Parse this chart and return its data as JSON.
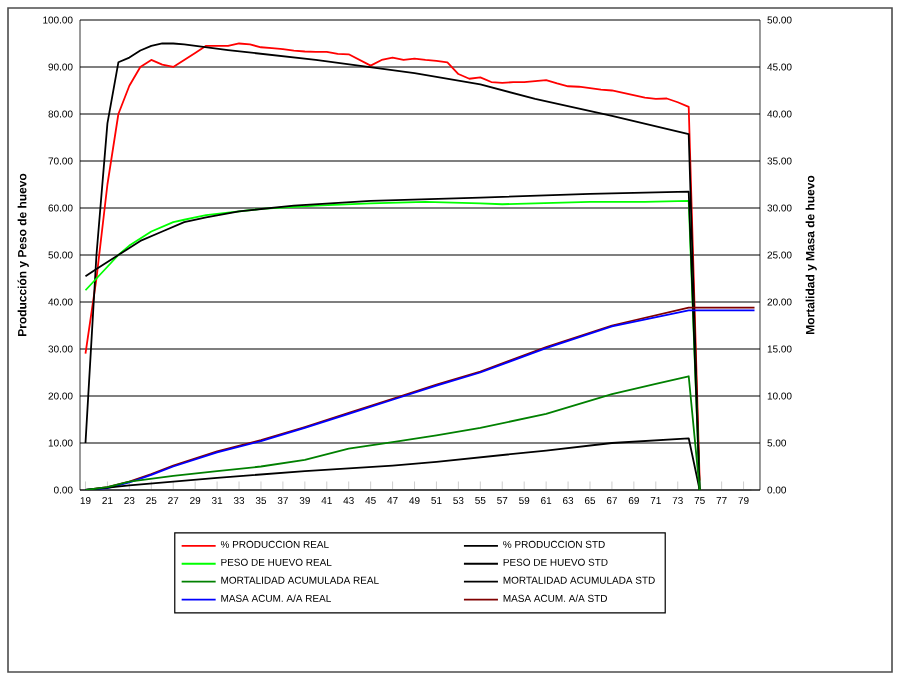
{
  "chart_data": {
    "type": "line",
    "ylabel": "Producción y Peso de huevo",
    "y2label": "Mortalidad y Masa de huevo",
    "xlim": [
      18.5,
      80.5
    ],
    "xticks": [
      19,
      21,
      23,
      25,
      27,
      29,
      31,
      33,
      35,
      37,
      39,
      41,
      43,
      45,
      47,
      49,
      51,
      53,
      55,
      57,
      59,
      61,
      63,
      65,
      67,
      69,
      71,
      73,
      75,
      77,
      79
    ],
    "ylim": [
      0,
      100
    ],
    "yticks": [
      {
        "value": 0,
        "label": "0.00"
      },
      {
        "value": 10,
        "label": "10.00"
      },
      {
        "value": 20,
        "label": "20.00"
      },
      {
        "value": 30,
        "label": "30.00"
      },
      {
        "value": 40,
        "label": "40.00"
      },
      {
        "value": 50,
        "label": "50.00"
      },
      {
        "value": 60,
        "label": "60.00"
      },
      {
        "value": 70,
        "label": "70.00"
      },
      {
        "value": 80,
        "label": "80.00"
      },
      {
        "value": 90,
        "label": "90.00"
      },
      {
        "value": 100,
        "label": "100.00"
      }
    ],
    "y2lim": [
      0,
      50
    ],
    "y2ticks": [
      {
        "value": 0,
        "label": "0.00"
      },
      {
        "value": 5,
        "label": "5.00"
      },
      {
        "value": 10,
        "label": "10.00"
      },
      {
        "value": 15,
        "label": "15.00"
      },
      {
        "value": 20,
        "label": "20.00"
      },
      {
        "value": 25,
        "label": "25.00"
      },
      {
        "value": 30,
        "label": "30.00"
      },
      {
        "value": 35,
        "label": "35.00"
      },
      {
        "value": 40,
        "label": "40.00"
      },
      {
        "value": 45,
        "label": "45.00"
      },
      {
        "value": 50,
        "label": "50.00"
      }
    ],
    "grid": "y",
    "legend": "bottom",
    "marker": "none",
    "line_style": "solid",
    "series": [
      {
        "name": "% PRODUCCION REAL",
        "color": "#ff0000",
        "x": [
          19,
          20,
          21,
          22,
          23,
          24,
          25,
          26,
          27,
          28,
          29,
          30,
          31,
          32,
          33,
          34,
          35,
          36,
          37,
          38,
          39,
          40,
          41,
          42,
          43,
          44,
          45,
          46,
          47,
          48,
          49,
          50,
          51,
          52,
          53,
          54,
          55,
          56,
          57,
          58,
          59,
          60,
          61,
          62,
          63,
          64,
          65,
          66,
          67,
          68,
          69,
          70,
          71,
          72,
          73,
          74,
          75
        ],
        "values": [
          29,
          45,
          65,
          80,
          86,
          90,
          91.5,
          90.5,
          90,
          91.5,
          93,
          94.5,
          94.5,
          94.5,
          95,
          94.8,
          94.2,
          94,
          93.8,
          93.5,
          93.3,
          93.2,
          93.2,
          92.8,
          92.7,
          91.5,
          90.3,
          91.5,
          92,
          91.5,
          91.8,
          91.5,
          91.3,
          91,
          88.5,
          87.5,
          87.8,
          86.8,
          86.6,
          86.8,
          86.8,
          87,
          87.2,
          86.5,
          85.9,
          85.8,
          85.5,
          85.2,
          85,
          84.5,
          84,
          83.5,
          83.2,
          83.3,
          82.5,
          81.5,
          2
        ]
      },
      {
        "name": "% PRODUCCION STD",
        "color": "#000000",
        "x": [
          19,
          20,
          21,
          22,
          23,
          24,
          25,
          26,
          27,
          28,
          32,
          40,
          49,
          55,
          60,
          67,
          74,
          75
        ],
        "values": [
          10,
          50,
          78,
          91,
          92,
          93.5,
          94.5,
          95,
          95,
          94.8,
          93.6,
          91.5,
          88.7,
          86.3,
          83.2,
          79.6,
          75.7,
          0
        ]
      },
      {
        "name": "PESO DE HUEVO REAL",
        "color": "#00ff00",
        "x": [
          19,
          20,
          21,
          22,
          23,
          24,
          25,
          26,
          27,
          28,
          29,
          30,
          32,
          35,
          40,
          45,
          50,
          55,
          57,
          60,
          65,
          70,
          74,
          75
        ],
        "values": [
          42.5,
          45,
          47.5,
          50,
          52,
          53.5,
          55,
          56,
          57,
          57.5,
          58,
          58.5,
          59,
          59.8,
          60.5,
          61,
          61.3,
          61,
          60.8,
          61,
          61.3,
          61.3,
          61.5,
          0
        ]
      },
      {
        "name": "PESO DE HUEVO STD",
        "color": "#000000",
        "x": [
          19,
          20,
          22,
          24,
          26,
          28,
          30,
          33,
          38,
          45,
          55,
          65,
          74,
          75
        ],
        "values": [
          45.5,
          47,
          50,
          53,
          55,
          57,
          58,
          59.3,
          60.5,
          61.5,
          62.2,
          63,
          63.5,
          0
        ]
      },
      {
        "name": "MORTALIDAD ACUMULADA REAL",
        "color": "#008000",
        "axis": "y2",
        "x": [
          19,
          21,
          23,
          27,
          31,
          35,
          39,
          43,
          47,
          51,
          55,
          61,
          67,
          71,
          74,
          75
        ],
        "values": [
          0,
          0.3,
          0.9,
          1.5,
          2,
          2.5,
          3.2,
          4.4,
          5.1,
          5.8,
          6.6,
          8.1,
          10.2,
          11.3,
          12.1,
          0
        ]
      },
      {
        "name": "MORTALIDAD ACUMULADA STD",
        "color": "#000000",
        "axis": "y2",
        "x": [
          19,
          23,
          31,
          39,
          47,
          51,
          61,
          67,
          74,
          75
        ],
        "values": [
          0,
          0.5,
          1.3,
          2,
          2.6,
          3,
          4.2,
          5,
          5.5,
          0
        ]
      },
      {
        "name": "MASA ACUM. A/A REAL",
        "color": "#0000ff",
        "axis": "y2",
        "x": [
          19,
          21,
          23,
          25,
          27,
          31,
          35,
          39,
          43,
          47,
          51,
          55,
          61,
          67,
          74,
          76,
          80
        ],
        "values": [
          0,
          0.2,
          0.8,
          1.6,
          2.5,
          4,
          5.2,
          6.6,
          8.1,
          9.6,
          11.1,
          12.5,
          15.1,
          17.4,
          19.1,
          19.1,
          19.1
        ]
      },
      {
        "name": "MASA ACUM. A/A STD",
        "color": "#800000",
        "axis": "y2",
        "x": [
          19,
          21,
          23,
          25,
          27,
          31,
          35,
          39,
          43,
          47,
          51,
          55,
          61,
          67,
          74,
          80
        ],
        "values": [
          0,
          0.3,
          0.9,
          1.7,
          2.6,
          4.1,
          5.3,
          6.7,
          8.2,
          9.7,
          11.2,
          12.6,
          15.2,
          17.5,
          19.4,
          19.4
        ]
      }
    ]
  }
}
